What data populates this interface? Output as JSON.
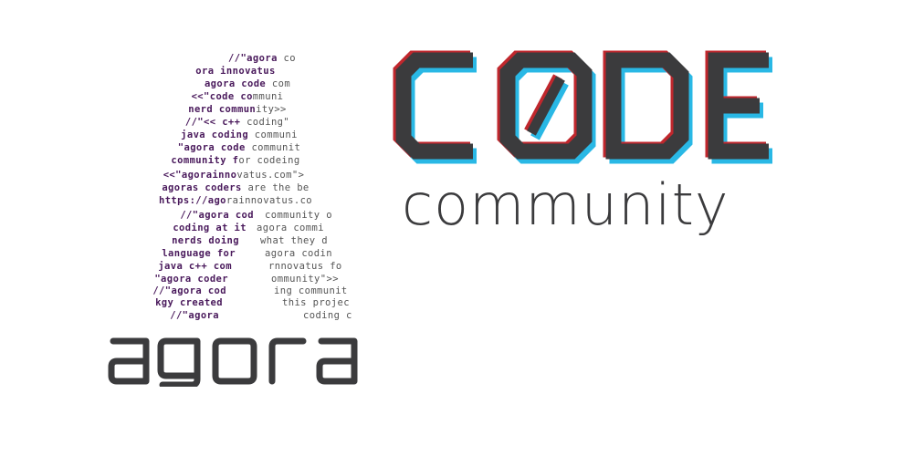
{
  "logo_a_lines": [
    {
      "b": "//\"agora",
      "r": " co"
    },
    {
      "b": "ora innovatus",
      "r": ""
    },
    {
      "b": "agora code",
      "r": " com"
    },
    {
      "b": "<<\"code co",
      "r": "mmuni"
    },
    {
      "b": "nerd commun",
      "r": "ity>>"
    },
    {
      "b": "//\"<< c++ ",
      "r": "coding\""
    },
    {
      "b": "java coding",
      "r": " communi"
    },
    {
      "b": "\"agora code ",
      "r": "communit"
    },
    {
      "b": "community f",
      "r": "or codeing"
    },
    {
      "b": "<<\"agorainno",
      "r": "vatus.com\">"
    },
    {
      "b": "agoras coders",
      "r": " are the be"
    },
    {
      "b": "https://ago",
      "r": "rainnovatus.co"
    }
  ],
  "logo_a_left_lines": [
    "//\"agora cod",
    "coding at it",
    "nerds doing",
    "language for",
    "java c++ com",
    "\"agora coder",
    "//\"agora cod",
    "kgy created",
    "//\"agora"
  ],
  "logo_a_right_lines": [
    "community o",
    "agora commi",
    "what they d",
    "agora codin",
    "rnnovatus fo",
    "ommunity\">>",
    "ing communit",
    "this projec",
    "coding c"
  ],
  "brand": {
    "agora": "agora",
    "code": "C0DE",
    "community": "community"
  },
  "colors": {
    "dark": "#3b3b3d",
    "purple": "#4a1a5c",
    "red": "#c0272d",
    "cyan": "#29b8e5"
  }
}
